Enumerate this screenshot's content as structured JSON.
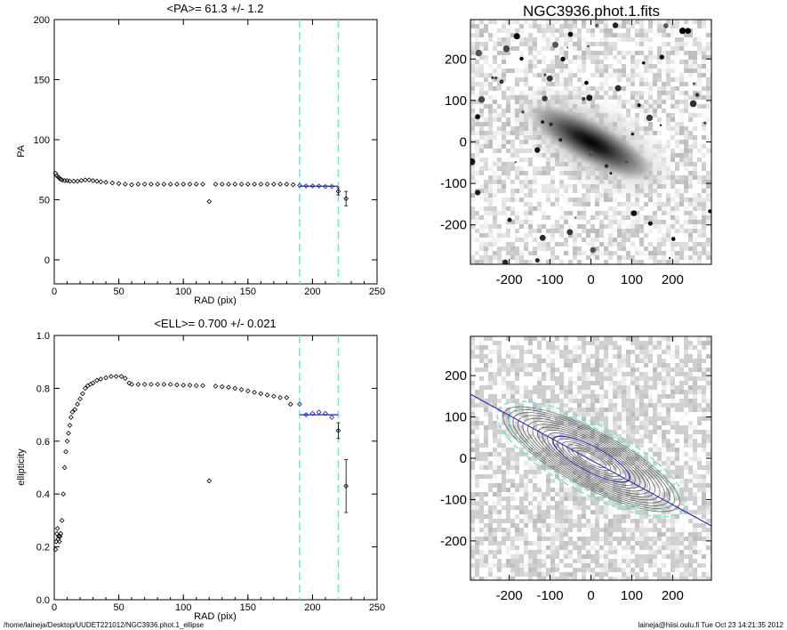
{
  "footer": {
    "path": "/home/laineja/Desktop/UUDET221012/NGC3936.phot.1_ellipse",
    "user_time": "laineja@hiisi.oulu.fi  Tue Oct 23 14:21:35 2012"
  },
  "image_title": "NGC3936.phot.1.fits",
  "image_axes": {
    "x_ticks": [
      -200,
      -100,
      0,
      100,
      200
    ],
    "y_ticks": [
      200,
      100,
      0,
      -100,
      -200
    ],
    "range": [
      -295,
      295
    ]
  },
  "colors": {
    "fit_line": "#2222aa",
    "marker_lines": "#7fe0d0",
    "contours": "#555555"
  },
  "chart_data": [
    {
      "type": "scatter",
      "title": "<PA>=  61.3 +/-   1.2",
      "xlabel": "RAD (pix)",
      "ylabel": "PA",
      "xlim": [
        0,
        250
      ],
      "ylim": [
        -20,
        200
      ],
      "x_ticks": [
        0,
        50,
        100,
        150,
        200,
        250
      ],
      "y_ticks": [
        0,
        50,
        100,
        150,
        200
      ],
      "vlines": [
        190,
        220
      ],
      "fit": {
        "x": [
          190,
          220
        ],
        "y": 61.3
      },
      "series": [
        {
          "points": [
            [
              1,
              72
            ],
            [
              2,
              70
            ],
            [
              3,
              69
            ],
            [
              4,
              68
            ],
            [
              5,
              67
            ],
            [
              6,
              66.5
            ],
            [
              8,
              66
            ],
            [
              10,
              66
            ],
            [
              12,
              65.5
            ],
            [
              15,
              65.5
            ],
            [
              18,
              65.5
            ],
            [
              21,
              66
            ],
            [
              24,
              66.5
            ],
            [
              27,
              66.5
            ],
            [
              30,
              66
            ],
            [
              33,
              65.5
            ],
            [
              36,
              65
            ],
            [
              40,
              64.5
            ],
            [
              45,
              64
            ],
            [
              50,
              63.5
            ],
            [
              55,
              63
            ],
            [
              60,
              62.5
            ],
            [
              65,
              63
            ],
            [
              70,
              63
            ],
            [
              75,
              63
            ],
            [
              80,
              63
            ],
            [
              85,
              63
            ],
            [
              90,
              63
            ],
            [
              95,
              63
            ],
            [
              100,
              63
            ],
            [
              105,
              63
            ],
            [
              110,
              63
            ],
            [
              115,
              63
            ],
            [
              120,
              48.5
            ],
            [
              125,
              63
            ],
            [
              130,
              63
            ],
            [
              135,
              63
            ],
            [
              140,
              63
            ],
            [
              145,
              63
            ],
            [
              150,
              63
            ],
            [
              155,
              63
            ],
            [
              160,
              63
            ],
            [
              165,
              63
            ],
            [
              170,
              63
            ],
            [
              175,
              63
            ],
            [
              180,
              63
            ],
            [
              185,
              62.5
            ]
          ],
          "fit_points": [
            [
              190,
              62
            ],
            [
              195,
              61.5
            ],
            [
              200,
              61.5
            ],
            [
              205,
              61.5
            ],
            [
              210,
              61
            ],
            [
              215,
              61
            ]
          ],
          "error_points": [
            [
              220,
              57,
              3
            ],
            [
              226,
              51,
              6
            ]
          ]
        }
      ]
    },
    {
      "type": "scatter",
      "title": "<ELL>= 0.700 +/-  0.021",
      "xlabel": "RAD (pix)",
      "ylabel": "ellipticity",
      "xlim": [
        0,
        250
      ],
      "ylim": [
        0,
        1
      ],
      "x_ticks": [
        0,
        50,
        100,
        150,
        200,
        250
      ],
      "y_ticks": [
        0.0,
        0.2,
        0.4,
        0.6,
        0.8,
        1.0
      ],
      "vlines": [
        190,
        220
      ],
      "fit": {
        "x": [
          190,
          220
        ],
        "y": 0.7
      },
      "series": [
        {
          "points": [
            [
              1,
              0.19
            ],
            [
              1.5,
              0.22
            ],
            [
              2,
              0.25
            ],
            [
              2.5,
              0.27
            ],
            [
              3,
              0.23
            ],
            [
              3.5,
              0.24
            ],
            [
              4,
              0.22
            ],
            [
              4.5,
              0.24
            ],
            [
              5,
              0.25
            ],
            [
              6,
              0.3
            ],
            [
              7,
              0.4
            ],
            [
              8,
              0.5
            ],
            [
              9,
              0.56
            ],
            [
              10,
              0.6
            ],
            [
              11,
              0.63
            ],
            [
              12,
              0.66
            ],
            [
              13,
              0.69
            ],
            [
              14,
              0.71
            ],
            [
              16,
              0.72
            ],
            [
              18,
              0.74
            ],
            [
              20,
              0.76
            ],
            [
              22,
              0.78
            ],
            [
              24,
              0.8
            ],
            [
              26,
              0.81
            ],
            [
              28,
              0.815
            ],
            [
              30,
              0.82
            ],
            [
              33,
              0.83
            ],
            [
              36,
              0.835
            ],
            [
              40,
              0.84
            ],
            [
              44,
              0.845
            ],
            [
              48,
              0.845
            ],
            [
              52,
              0.845
            ],
            [
              55,
              0.838
            ],
            [
              58,
              0.82
            ],
            [
              60,
              0.815
            ],
            [
              65,
              0.815
            ],
            [
              70,
              0.815
            ],
            [
              75,
              0.815
            ],
            [
              80,
              0.815
            ],
            [
              85,
              0.815
            ],
            [
              90,
              0.815
            ],
            [
              95,
              0.813
            ],
            [
              100,
              0.812
            ],
            [
              105,
              0.812
            ],
            [
              110,
              0.81
            ],
            [
              115,
              0.81
            ],
            [
              120,
              0.45
            ],
            [
              125,
              0.808
            ],
            [
              130,
              0.806
            ],
            [
              135,
              0.804
            ],
            [
              140,
              0.8
            ],
            [
              145,
              0.795
            ],
            [
              150,
              0.79
            ],
            [
              155,
              0.785
            ],
            [
              160,
              0.78
            ],
            [
              165,
              0.775
            ],
            [
              170,
              0.77
            ],
            [
              175,
              0.765
            ],
            [
              180,
              0.765
            ],
            [
              183,
              0.74
            ]
          ],
          "fit_points": [
            [
              190,
              0.74
            ],
            [
              195,
              0.7
            ],
            [
              200,
              0.705
            ],
            [
              205,
              0.71
            ],
            [
              210,
              0.705
            ],
            [
              215,
              0.69
            ]
          ],
          "error_points": [
            [
              220,
              0.64,
              0.03
            ],
            [
              226,
              0.43,
              0.1
            ]
          ]
        }
      ]
    }
  ]
}
